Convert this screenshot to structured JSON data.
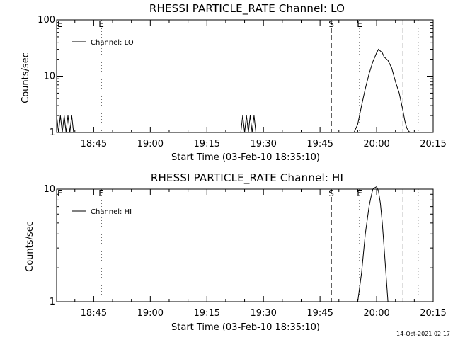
{
  "chart_data": [
    {
      "type": "line",
      "title": "RHESSI PARTICLE_RATE Channel: LO",
      "xlabel": "Start Time (03-Feb-10 18:35:10)",
      "ylabel": "Counts/sec",
      "y_scale": "log",
      "ylim": [
        1,
        100
      ],
      "y_ticks": [
        {
          "value": 1,
          "label": "1"
        },
        {
          "value": 10,
          "label": "10"
        },
        {
          "value": 100,
          "label": "100"
        }
      ],
      "xlim": [
        "18:35:10",
        "20:15:00"
      ],
      "x_ticks": [
        "18:45",
        "19:00",
        "19:15",
        "19:30",
        "19:45",
        "20:00",
        "20:15"
      ],
      "legend": {
        "position": "top-left",
        "entries": [
          "Channel: LO"
        ]
      },
      "markers": [
        {
          "time": "18:47:00",
          "style": "dotted",
          "label": "E"
        },
        {
          "time": "19:48:00",
          "style": "dashed",
          "label": "S"
        },
        {
          "time": "19:55:30",
          "style": "dotted",
          "label": "E"
        },
        {
          "time": "20:07:00",
          "style": "dashed",
          "label": ""
        },
        {
          "time": "20:11:00",
          "style": "dotted",
          "label": ""
        }
      ],
      "series": [
        {
          "name": "Channel: LO",
          "x": [
            "18:35:10",
            "18:35:40",
            "18:36:10",
            "18:36:40",
            "18:37:10",
            "18:37:40",
            "18:38:10",
            "18:38:40",
            "18:39:10",
            "18:39:40",
            "19:24:00",
            "19:24:30",
            "19:25:00",
            "19:25:30",
            "19:26:00",
            "19:26:30",
            "19:27:00",
            "19:27:30",
            "19:28:00",
            "19:54:00",
            "19:55:00",
            "19:56:00",
            "19:57:00",
            "19:58:00",
            "19:59:00",
            "20:00:00",
            "20:00:30",
            "20:01:00",
            "20:01:30",
            "20:02:00",
            "20:03:00",
            "20:04:00",
            "20:05:00",
            "20:06:00",
            "20:07:00",
            "20:07:30",
            "20:08:00",
            "20:08:30",
            "20:09:00",
            "20:09:30"
          ],
          "values": [
            2,
            1,
            2,
            1,
            2,
            1,
            2,
            1,
            2,
            1,
            1,
            2,
            1,
            2,
            1,
            2,
            1,
            2,
            1,
            1,
            1.4,
            3,
            6,
            11,
            18,
            26,
            30,
            28,
            26,
            22,
            19,
            14,
            8,
            5,
            2.4,
            1.6,
            1.2,
            1.05,
            1,
            1
          ]
        }
      ]
    },
    {
      "type": "line",
      "title": "RHESSI PARTICLE_RATE Channel: HI",
      "xlabel": "Start Time (03-Feb-10 18:35:10)",
      "ylabel": "Counts/sec",
      "y_scale": "log",
      "ylim": [
        1,
        10
      ],
      "y_ticks": [
        {
          "value": 1,
          "label": "1"
        },
        {
          "value": 10,
          "label": "10"
        }
      ],
      "xlim": [
        "18:35:10",
        "20:15:00"
      ],
      "x_ticks": [
        "18:45",
        "19:00",
        "19:15",
        "19:30",
        "19:45",
        "20:00",
        "20:15"
      ],
      "legend": {
        "position": "top-left",
        "entries": [
          "Channel: HI"
        ]
      },
      "markers": [
        {
          "time": "18:47:00",
          "style": "dotted",
          "label": "E"
        },
        {
          "time": "19:48:00",
          "style": "dashed",
          "label": "S"
        },
        {
          "time": "19:55:30",
          "style": "dotted",
          "label": "E"
        },
        {
          "time": "20:07:00",
          "style": "dashed",
          "label": ""
        },
        {
          "time": "20:11:00",
          "style": "dotted",
          "label": ""
        }
      ],
      "series": [
        {
          "name": "Channel: HI",
          "x": [
            "19:55:00",
            "19:56:00",
            "19:57:00",
            "19:58:00",
            "19:58:30",
            "19:59:00",
            "19:59:30",
            "20:00:00",
            "20:00:30",
            "20:01:00",
            "20:01:30",
            "20:02:00",
            "20:03:00"
          ],
          "values": [
            1,
            1.8,
            4,
            7,
            8.5,
            10,
            10.3,
            10.5,
            9.6,
            7.5,
            5,
            3,
            1
          ]
        }
      ]
    }
  ],
  "timestamp": "14-Oct-2021 02:17"
}
